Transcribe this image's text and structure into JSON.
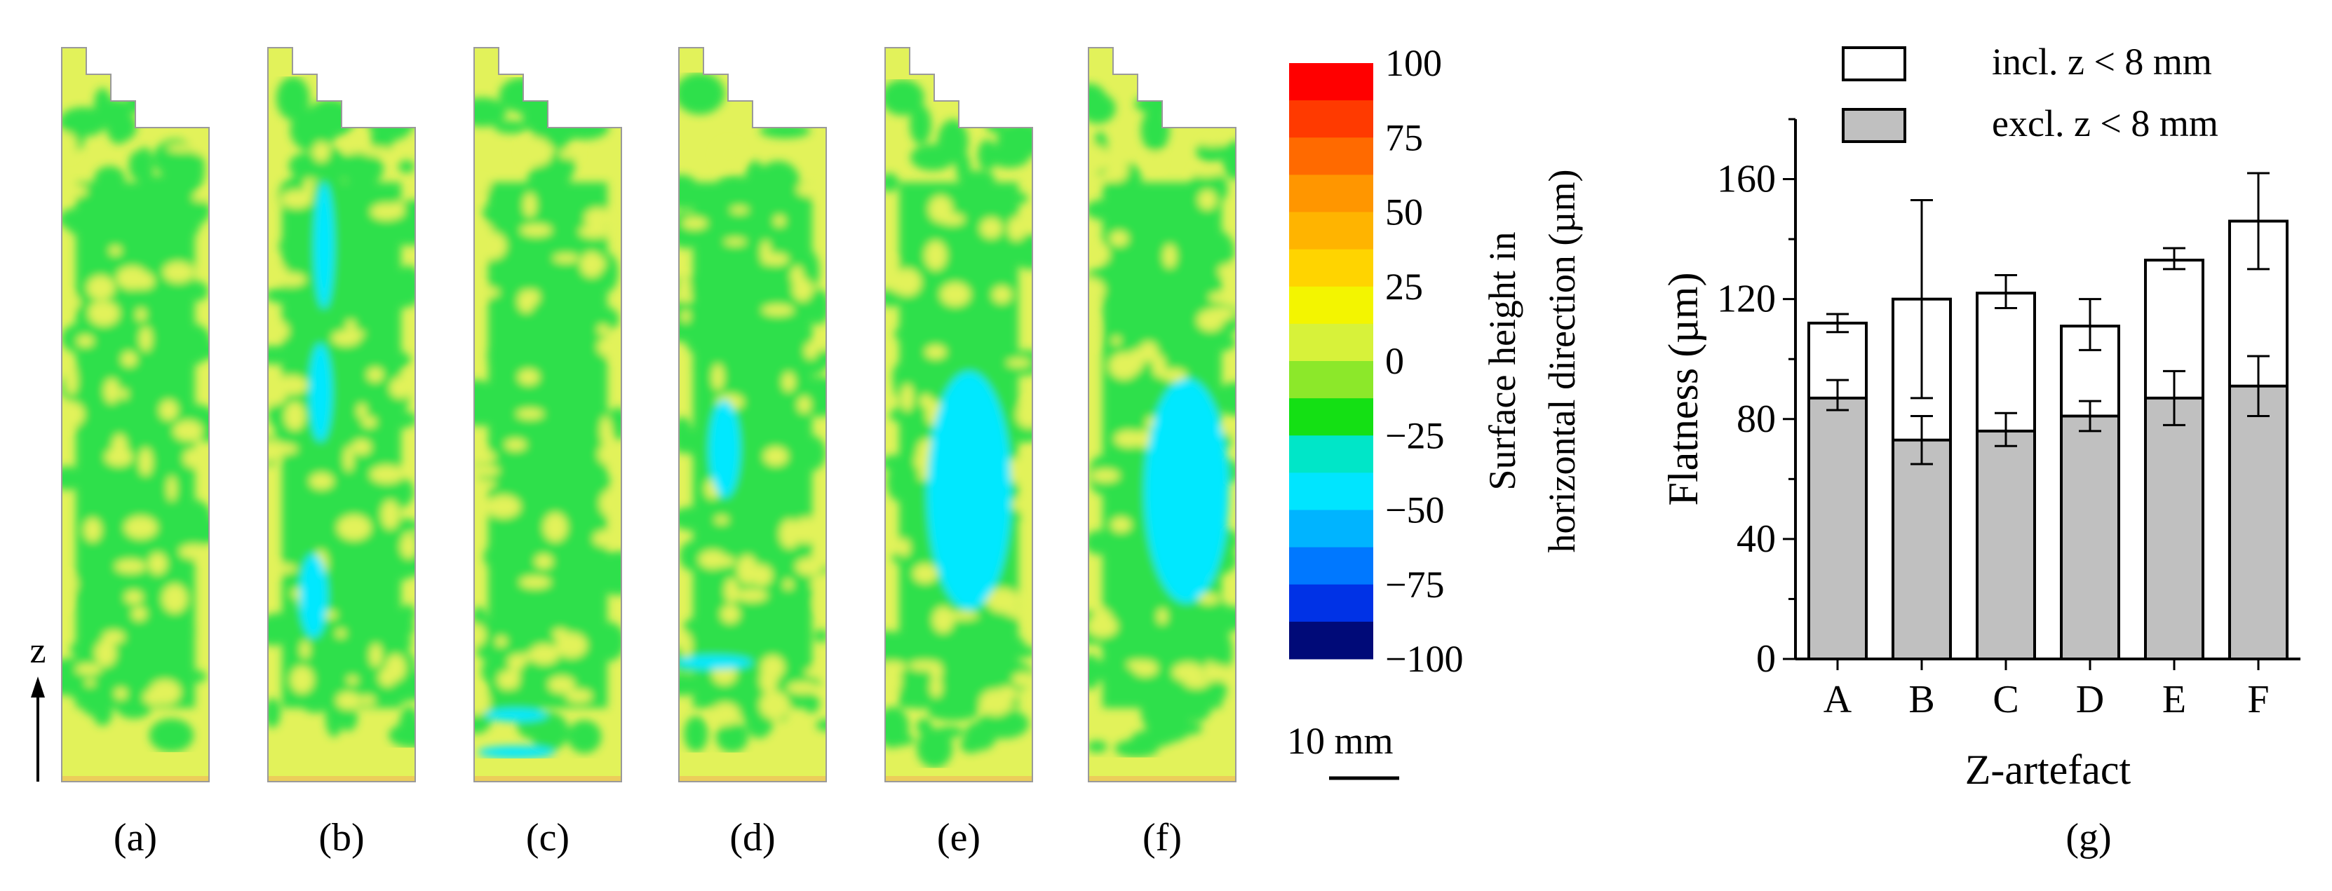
{
  "panel_labels": [
    "(a)",
    "(b)",
    "(c)",
    "(d)",
    "(e)",
    "(f)",
    "(g)"
  ],
  "maps": {
    "axis_label": "z",
    "scale_bar_label": "10 mm",
    "colorbar": {
      "title_line1": "Surface height in",
      "title_line2": "horizontal direction (µm)",
      "ticks": [
        "100",
        "75",
        "50",
        "25",
        "0",
        "−25",
        "−50",
        "−75",
        "−100"
      ],
      "min": -100,
      "max": 100,
      "colors": [
        "#ff0000",
        "#ff3a00",
        "#ff6a00",
        "#ff9600",
        "#ffb400",
        "#ffd400",
        "#f3f500",
        "#d7f23a",
        "#8ce82a",
        "#14e014",
        "#00e6c8",
        "#00e5ff",
        "#00b4ff",
        "#0078ff",
        "#0032e6",
        "#000a78"
      ]
    },
    "colors": {
      "yellow": "#e2f25a",
      "green": "#2fe04c",
      "cyan": "#00e8ff",
      "orange": "#f4b45a",
      "outline": "#9a9a9a"
    }
  },
  "chart_data": {
    "type": "bar",
    "title": "",
    "xlabel": "Z-artefact",
    "ylabel": "Flatness (µm)",
    "categories": [
      "A",
      "B",
      "C",
      "D",
      "E",
      "F"
    ],
    "ylim": [
      0,
      180
    ],
    "yticks": [
      "0",
      "40",
      "80",
      "120",
      "160"
    ],
    "series": [
      {
        "name": "incl. z < 8 mm",
        "color": "#ffffff",
        "values": [
          112,
          120,
          122,
          111,
          133,
          146
        ],
        "error_low": [
          109,
          87,
          117,
          103,
          130,
          130
        ],
        "error_high": [
          115,
          153,
          128,
          120,
          137,
          162
        ]
      },
      {
        "name": "excl. z < 8 mm",
        "color": "#c0c0c0",
        "values": [
          87,
          73,
          76,
          81,
          87,
          91
        ],
        "error_low": [
          83,
          65,
          71,
          76,
          78,
          81
        ],
        "error_high": [
          93,
          81,
          82,
          86,
          96,
          101
        ]
      }
    ],
    "legend_position": "top-right"
  }
}
